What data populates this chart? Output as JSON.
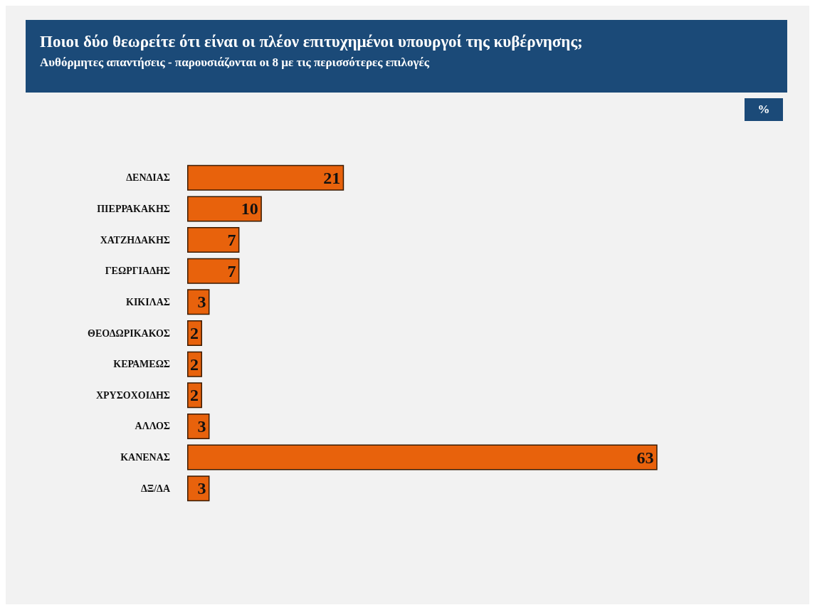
{
  "chart_data": {
    "type": "bar",
    "orientation": "horizontal",
    "title": "Ποιοι δύο θεωρείτε ότι είναι οι πλέον επιτυχημένοι υπουργοί της κυβέρνησης;",
    "subtitle": "Αυθόρμητες απαντήσεις - παρουσιάζονται οι 8 με τις περισσότερες επιλογές",
    "annotations": [
      "%"
    ],
    "categories": [
      "ΔΕΝΔΙΑΣ",
      "ΠΙΕΡΡΑΚΑΚΗΣ",
      "ΧΑΤΖΗΔΑΚΗΣ",
      "ΓΕΩΡΓΙΑΔΗΣ",
      "ΚΙΚΙΛΑΣ",
      "ΘΕΟΔΩΡΙΚΑΚΟΣ",
      "ΚΕΡΑΜΕΩΣ",
      "ΧΡΥΣΟΧΟΙΔΗΣ",
      "ΑΛΛΟΣ",
      "ΚΑΝΕΝΑΣ",
      "ΔΞ/ΔΑ"
    ],
    "values": [
      21,
      10,
      7,
      7,
      3,
      2,
      2,
      2,
      3,
      63,
      3
    ],
    "color": "#e8620c",
    "data_labels": true
  }
}
